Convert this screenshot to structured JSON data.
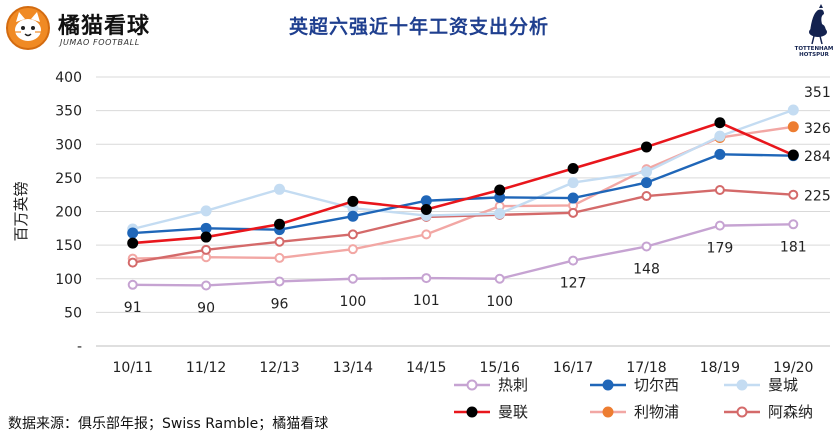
{
  "brand": {
    "name": "橘猫看球",
    "subtitle": "JUMAO FOOTBALL"
  },
  "title": "英超六强近十年工资支出分析",
  "club_crest": {
    "icon": "tottenham-cockerel-icon",
    "text_line1": "TOTTENHAM",
    "text_line2": "HOTSPUR"
  },
  "source": "数据来源：俱乐部年报；Swiss Ramble；橘猫看球",
  "chart_data": {
    "type": "line",
    "ylabel": "百万英镑",
    "ylim": [
      0,
      400
    ],
    "yticks": [
      "-",
      "50",
      "100",
      "150",
      "200",
      "250",
      "300",
      "350",
      "400"
    ],
    "categories": [
      "10/11",
      "11/12",
      "12/13",
      "13/14",
      "14/15",
      "15/16",
      "16/17",
      "17/18",
      "18/19",
      "19/20"
    ],
    "grid": "horizontal",
    "legend_position": "bottom-right",
    "series": [
      {
        "name": "热刺",
        "color": "#c6a3d2",
        "marker": "open",
        "values": [
          91,
          90,
          96,
          100,
          101,
          100,
          127,
          148,
          179,
          181
        ]
      },
      {
        "name": "切尔西",
        "color": "#1f66b8",
        "marker": "filled",
        "values": [
          168,
          175,
          173,
          193,
          216,
          221,
          220,
          243,
          285,
          283
        ]
      },
      {
        "name": "曼城",
        "color": "#c4dcf2",
        "marker": "filled",
        "values": [
          174,
          201,
          233,
          205,
          194,
          197,
          243,
          259,
          312,
          351
        ]
      },
      {
        "name": "曼联",
        "color": "#e8161c",
        "marker": "black",
        "values": [
          153,
          162,
          181,
          215,
          203,
          232,
          264,
          296,
          332,
          284
        ]
      },
      {
        "name": "利物浦",
        "color": "#f2a7a4",
        "marker": "orange-end",
        "values": [
          130,
          132,
          131,
          144,
          166,
          208,
          209,
          263,
          310,
          326
        ]
      },
      {
        "name": "阿森纳",
        "color": "#d46a6a",
        "marker": "open",
        "values": [
          124,
          143,
          155,
          166,
          192,
          195,
          198,
          223,
          232,
          225
        ]
      }
    ],
    "data_labels": {
      "热刺": [
        "91",
        "90",
        "96",
        "100",
        "101",
        "100",
        "127",
        "148",
        "179",
        "181"
      ],
      "right_end": [
        "351",
        "326",
        "284",
        "225"
      ]
    }
  }
}
